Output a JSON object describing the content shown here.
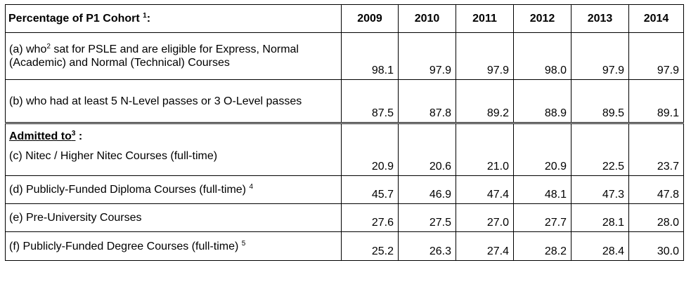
{
  "header": {
    "label": "Percentage of P1 Cohort",
    "label_sup": "1",
    "label_suffix": ":",
    "years": [
      "2009",
      "2010",
      "2011",
      "2012",
      "2013",
      "2014"
    ]
  },
  "rows": [
    {
      "pre": "(a) who",
      "sup": "2",
      "post": " sat for PSLE and are eligible for Express, Normal (Academic) and Normal (Technical) Courses",
      "values": [
        "98.1",
        "97.9",
        "97.9",
        "98.0",
        "97.9",
        "97.9"
      ]
    },
    {
      "pre": "(b) who had at least 5 N-Level passes or 3 O-Level passes",
      "sup": "",
      "post": "",
      "values": [
        "87.5",
        "87.8",
        "89.2",
        "88.9",
        "89.5",
        "89.1"
      ]
    }
  ],
  "admitted": {
    "label": "Admitted to",
    "sup": "3",
    "suffix": " :"
  },
  "rows2": [
    {
      "pre": "(c) Nitec / Higher Nitec Courses (full-time)",
      "sup": "",
      "values": [
        "20.9",
        "20.6",
        "21.0",
        "20.9",
        "22.5",
        "23.7"
      ]
    },
    {
      "pre": "(d) Publicly-Funded Diploma Courses (full-time) ",
      "sup": "4",
      "values": [
        "45.7",
        "46.9",
        "47.4",
        "48.1",
        "47.3",
        "47.8"
      ]
    },
    {
      "pre": "(e) Pre-University Courses",
      "sup": "",
      "values": [
        "27.6",
        "27.5",
        "27.0",
        "27.7",
        "28.1",
        "28.0"
      ]
    },
    {
      "pre": "(f) Publicly-Funded Degree Courses (full-time) ",
      "sup": "5",
      "values": [
        "25.2",
        "26.3",
        "27.4",
        "28.2",
        "28.4",
        "30.0"
      ]
    }
  ]
}
